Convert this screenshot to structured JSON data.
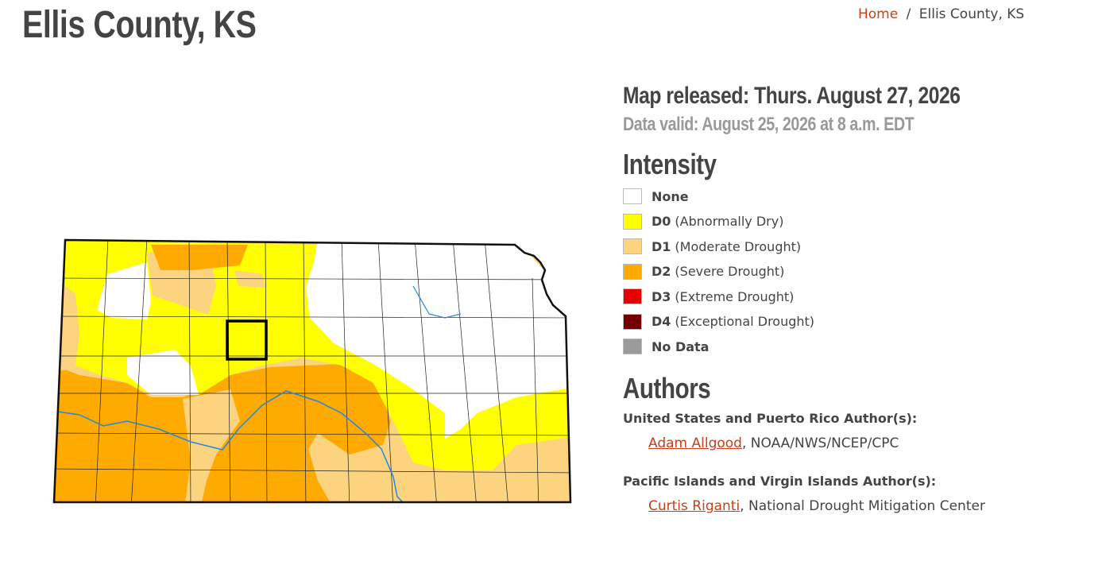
{
  "header": {
    "title": "Ellis County, KS"
  },
  "breadcrumb": {
    "home": "Home",
    "separator": "/",
    "current": "Ellis County, KS"
  },
  "release": {
    "released": "Map released: Thurs. August 27, 2026",
    "valid": "Data valid: August 25, 2026 at 8 a.m. EDT"
  },
  "legend": {
    "title": "Intensity",
    "items": [
      {
        "code": "None",
        "label": null,
        "color": "#ffffff"
      },
      {
        "code": "D0",
        "label": "(Abnormally Dry)",
        "color": "#ffff00"
      },
      {
        "code": "D1",
        "label": "(Moderate Drought)",
        "color": "#fcd37f"
      },
      {
        "code": "D2",
        "label": "(Severe Drought)",
        "color": "#ffaa00"
      },
      {
        "code": "D3",
        "label": "(Extreme Drought)",
        "color": "#e60000"
      },
      {
        "code": "D4",
        "label": "(Exceptional Drought)",
        "color": "#730000"
      },
      {
        "code": "No Data",
        "label": null,
        "color": "#9b9b9b"
      }
    ]
  },
  "authors": {
    "title": "Authors",
    "groups": [
      {
        "heading": "United States and Puerto Rico Author(s):",
        "name": "Adam Allgood",
        "rest": ", NOAA/NWS/NCEP/CPC"
      },
      {
        "heading": "Pacific Islands and Virgin Islands Author(s):",
        "name": "Curtis Riganti",
        "rest": ", National Drought Mitigation Center"
      }
    ]
  }
}
